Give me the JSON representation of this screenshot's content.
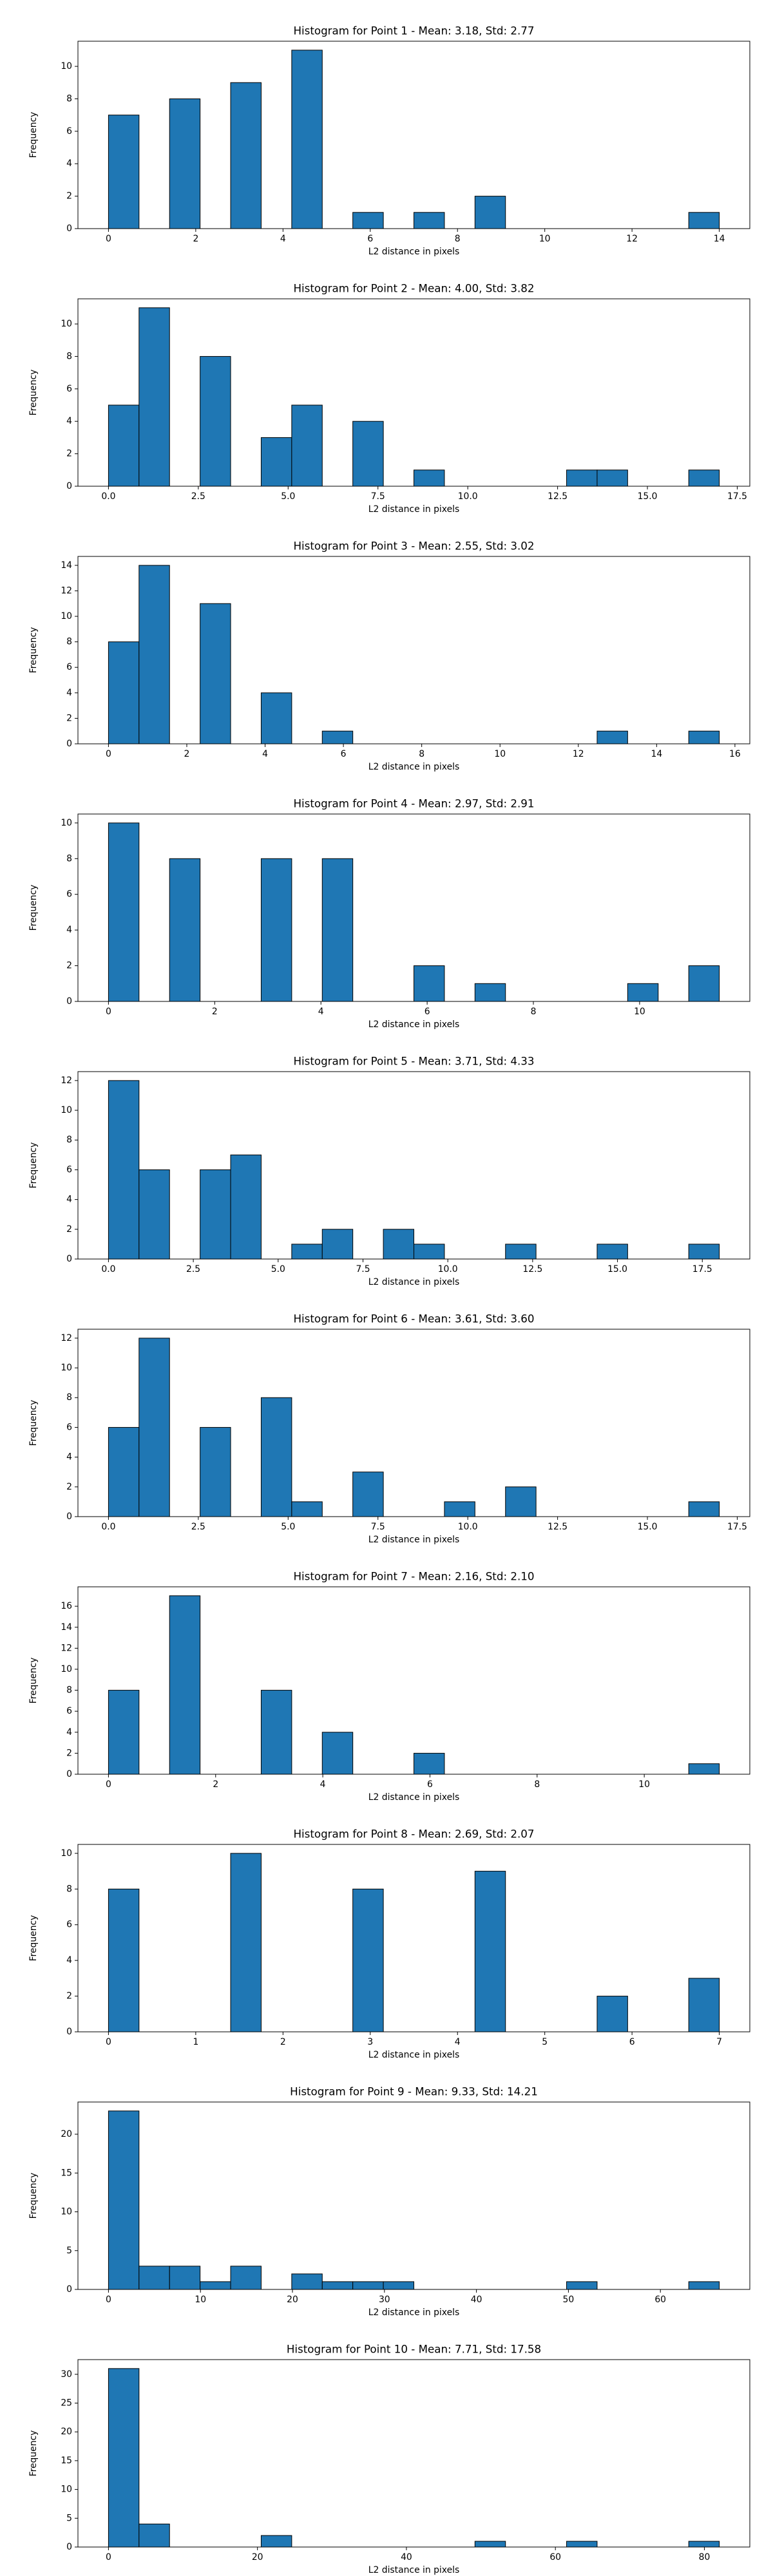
{
  "chart_data": [
    {
      "type": "histogram",
      "title": "Histogram for Point 1 - Mean: 3.18, Std: 2.77",
      "x_label": "L2 distance in pixels",
      "y_label": "Frequency",
      "color": "#1f77b4",
      "edgecolor": "#000000",
      "bins": [
        0,
        0.7,
        1.4,
        2.1,
        2.8,
        3.5,
        4.2,
        4.9,
        5.6,
        6.3,
        7.0,
        7.7,
        8.4,
        9.1,
        9.8,
        10.5,
        11.2,
        11.9,
        12.6,
        13.3,
        14.0
      ],
      "values": [
        7,
        0,
        8,
        0,
        9,
        0,
        11,
        0,
        1,
        0,
        1,
        0,
        2,
        0,
        0,
        0,
        0,
        0,
        0,
        1
      ],
      "xlim": [
        -0.7,
        14.7
      ],
      "xticks": [
        0,
        2,
        4,
        6,
        8,
        10,
        12,
        14
      ],
      "ylim": [
        0,
        11.55
      ],
      "yticks": [
        0,
        2,
        4,
        6,
        8,
        10
      ]
    },
    {
      "type": "histogram",
      "title": "Histogram for Point 2 - Mean: 4.00, Std: 3.82",
      "x_label": "L2 distance in pixels",
      "y_label": "Frequency",
      "color": "#1f77b4",
      "edgecolor": "#000000",
      "bins": [
        0,
        0.85,
        1.7,
        2.55,
        3.4,
        4.25,
        5.1,
        5.95,
        6.8,
        7.65,
        8.5,
        9.35,
        10.2,
        11.05,
        11.9,
        12.75,
        13.6,
        14.45,
        15.3,
        16.15,
        17.0
      ],
      "values": [
        5,
        11,
        0,
        8,
        0,
        3,
        5,
        0,
        4,
        0,
        1,
        0,
        0,
        0,
        0,
        1,
        1,
        0,
        0,
        1
      ],
      "xlim": [
        -0.85,
        17.85
      ],
      "xticks": [
        {
          "value": 0,
          "label": "0.0"
        },
        2.5,
        {
          "value": 5,
          "label": "5.0"
        },
        7.5,
        {
          "value": 10,
          "label": "10.0"
        },
        12.5,
        {
          "value": 15,
          "label": "15.0"
        },
        17.5
      ],
      "ylim": [
        0,
        11.55
      ],
      "yticks": [
        0,
        2,
        4,
        6,
        8,
        10
      ]
    },
    {
      "type": "histogram",
      "title": "Histogram for Point 3 - Mean: 2.55, Std: 3.02",
      "x_label": "L2 distance in pixels",
      "y_label": "Frequency",
      "color": "#1f77b4",
      "edgecolor": "#000000",
      "bins": [
        0,
        0.78,
        1.56,
        2.34,
        3.12,
        3.9,
        4.68,
        5.46,
        6.24,
        7.02,
        7.8,
        8.58,
        9.36,
        10.14,
        10.92,
        11.7,
        12.48,
        13.26,
        14.04,
        14.82,
        15.6
      ],
      "values": [
        8,
        14,
        0,
        11,
        0,
        4,
        0,
        1,
        0,
        0,
        0,
        0,
        0,
        0,
        0,
        0,
        1,
        0,
        0,
        1
      ],
      "xlim": [
        -0.78,
        16.38
      ],
      "xticks": [
        0,
        2,
        4,
        6,
        8,
        10,
        12,
        14,
        16
      ],
      "ylim": [
        0,
        14.7
      ],
      "yticks": [
        0,
        2,
        4,
        6,
        8,
        10,
        12,
        14
      ]
    },
    {
      "type": "histogram",
      "title": "Histogram for Point 4 - Mean: 2.97, Std: 2.91",
      "x_label": "L2 distance in pixels",
      "y_label": "Frequency",
      "color": "#1f77b4",
      "edgecolor": "#000000",
      "bins": [
        0,
        0.575,
        1.15,
        1.725,
        2.3,
        2.875,
        3.45,
        4.025,
        4.6,
        5.175,
        5.75,
        6.325,
        6.9,
        7.475,
        8.05,
        8.625,
        9.2,
        9.775,
        10.35,
        10.925,
        11.5
      ],
      "values": [
        10,
        0,
        8,
        0,
        0,
        8,
        0,
        8,
        0,
        0,
        2,
        0,
        1,
        0,
        0,
        0,
        0,
        1,
        0,
        2
      ],
      "xlim": [
        -0.575,
        12.075
      ],
      "xticks": [
        0,
        2,
        4,
        6,
        8,
        10
      ],
      "ylim": [
        0,
        10.5
      ],
      "yticks": [
        0,
        2,
        4,
        6,
        8,
        10
      ]
    },
    {
      "type": "histogram",
      "title": "Histogram for Point 5 - Mean: 3.71, Std: 4.33",
      "x_label": "L2 distance in pixels",
      "y_label": "Frequency",
      "color": "#1f77b4",
      "edgecolor": "#000000",
      "bins": [
        0,
        0.9,
        1.8,
        2.7,
        3.6,
        4.5,
        5.4,
        6.3,
        7.2,
        8.1,
        9.0,
        9.9,
        10.8,
        11.7,
        12.6,
        13.5,
        14.4,
        15.3,
        16.2,
        17.1,
        18.0
      ],
      "values": [
        12,
        6,
        0,
        6,
        7,
        0,
        1,
        2,
        0,
        2,
        1,
        0,
        0,
        1,
        0,
        0,
        1,
        0,
        0,
        1
      ],
      "xlim": [
        -0.9,
        18.9
      ],
      "xticks": [
        {
          "value": 0,
          "label": "0.0"
        },
        2.5,
        {
          "value": 5,
          "label": "5.0"
        },
        7.5,
        {
          "value": 10,
          "label": "10.0"
        },
        12.5,
        {
          "value": 15,
          "label": "15.0"
        },
        17.5
      ],
      "ylim": [
        0,
        12.6
      ],
      "yticks": [
        0,
        2,
        4,
        6,
        8,
        10,
        12
      ]
    },
    {
      "type": "histogram",
      "title": "Histogram for Point 6 - Mean: 3.61, Std: 3.60",
      "x_label": "L2 distance in pixels",
      "y_label": "Frequency",
      "color": "#1f77b4",
      "edgecolor": "#000000",
      "bins": [
        0,
        0.85,
        1.7,
        2.55,
        3.4,
        4.25,
        5.1,
        5.95,
        6.8,
        7.65,
        8.5,
        9.35,
        10.2,
        11.05,
        11.9,
        12.75,
        13.6,
        14.45,
        15.3,
        16.15,
        17.0
      ],
      "values": [
        6,
        12,
        0,
        6,
        0,
        8,
        1,
        0,
        3,
        0,
        0,
        1,
        0,
        2,
        0,
        0,
        0,
        0,
        0,
        1
      ],
      "xlim": [
        -0.85,
        17.85
      ],
      "xticks": [
        {
          "value": 0,
          "label": "0.0"
        },
        2.5,
        {
          "value": 5,
          "label": "5.0"
        },
        7.5,
        {
          "value": 10,
          "label": "10.0"
        },
        12.5,
        {
          "value": 15,
          "label": "15.0"
        },
        17.5
      ],
      "ylim": [
        0,
        12.6
      ],
      "yticks": [
        0,
        2,
        4,
        6,
        8,
        10,
        12
      ]
    },
    {
      "type": "histogram",
      "title": "Histogram for Point 7 - Mean: 2.16, Std: 2.10",
      "x_label": "L2 distance in pixels",
      "y_label": "Frequency",
      "color": "#1f77b4",
      "edgecolor": "#000000",
      "bins": [
        0,
        0.57,
        1.14,
        1.71,
        2.28,
        2.85,
        3.42,
        3.99,
        4.56,
        5.13,
        5.7,
        6.27,
        6.84,
        7.41,
        7.98,
        8.55,
        9.12,
        9.69,
        10.26,
        10.83,
        11.4
      ],
      "values": [
        8,
        0,
        17,
        0,
        0,
        8,
        0,
        4,
        0,
        0,
        2,
        0,
        0,
        0,
        0,
        0,
        0,
        0,
        0,
        1
      ],
      "xlim": [
        -0.57,
        11.97
      ],
      "xticks": [
        0,
        2,
        4,
        6,
        8,
        10
      ],
      "ylim": [
        0,
        17.85
      ],
      "yticks": [
        0,
        2,
        4,
        6,
        8,
        10,
        12,
        14,
        16
      ]
    },
    {
      "type": "histogram",
      "title": "Histogram for Point 8 - Mean: 2.69, Std: 2.07",
      "x_label": "L2 distance in pixels",
      "y_label": "Frequency",
      "color": "#1f77b4",
      "edgecolor": "#000000",
      "bins": [
        0,
        0.35,
        0.7,
        1.05,
        1.4,
        1.75,
        2.1,
        2.45,
        2.8,
        3.15,
        3.5,
        3.85,
        4.2,
        4.55,
        4.9,
        5.25,
        5.6,
        5.95,
        6.3,
        6.65,
        7.0
      ],
      "values": [
        8,
        0,
        0,
        0,
        10,
        0,
        0,
        0,
        8,
        0,
        0,
        0,
        9,
        0,
        0,
        0,
        2,
        0,
        0,
        3
      ],
      "xlim": [
        -0.35,
        7.35
      ],
      "xticks": [
        0,
        1,
        2,
        3,
        4,
        5,
        6,
        7
      ],
      "ylim": [
        0,
        10.5
      ],
      "yticks": [
        0,
        2,
        4,
        6,
        8,
        10
      ]
    },
    {
      "type": "histogram",
      "title": "Histogram for Point 9 - Mean: 9.33, Std: 14.21",
      "x_label": "L2 distance in pixels",
      "y_label": "Frequency",
      "color": "#1f77b4",
      "edgecolor": "#000000",
      "bins": [
        0,
        3.32,
        6.64,
        9.96,
        13.28,
        16.6,
        19.92,
        23.24,
        26.56,
        29.88,
        33.2,
        36.52,
        39.84,
        43.16,
        46.48,
        49.8,
        53.12,
        56.44,
        59.76,
        63.08,
        66.4
      ],
      "values": [
        23,
        3,
        3,
        1,
        3,
        0,
        2,
        1,
        1,
        1,
        0,
        0,
        0,
        0,
        0,
        1,
        0,
        0,
        0,
        1
      ],
      "xlim": [
        -3.32,
        69.72
      ],
      "xticks": [
        0,
        10,
        20,
        30,
        40,
        50,
        60
      ],
      "ylim": [
        0,
        24.15
      ],
      "yticks": [
        0,
        5,
        10,
        15,
        20
      ]
    },
    {
      "type": "histogram",
      "title": "Histogram for Point 10 - Mean: 7.71, Std: 17.58",
      "x_label": "L2 distance in pixels",
      "y_label": "Frequency",
      "color": "#1f77b4",
      "edgecolor": "#000000",
      "bins": [
        0,
        4.1,
        8.2,
        12.3,
        16.4,
        20.5,
        24.6,
        28.7,
        32.8,
        36.9,
        41.0,
        45.1,
        49.2,
        53.3,
        57.4,
        61.5,
        65.6,
        69.7,
        73.8,
        77.9,
        82.0
      ],
      "values": [
        31,
        4,
        0,
        0,
        0,
        2,
        0,
        0,
        0,
        0,
        0,
        0,
        1,
        0,
        0,
        1,
        0,
        0,
        0,
        1
      ],
      "xlim": [
        -4.1,
        86.1
      ],
      "xticks": [
        0,
        20,
        40,
        60,
        80
      ],
      "ylim": [
        0,
        32.55
      ],
      "yticks": [
        0,
        5,
        10,
        15,
        20,
        25,
        30
      ]
    }
  ]
}
